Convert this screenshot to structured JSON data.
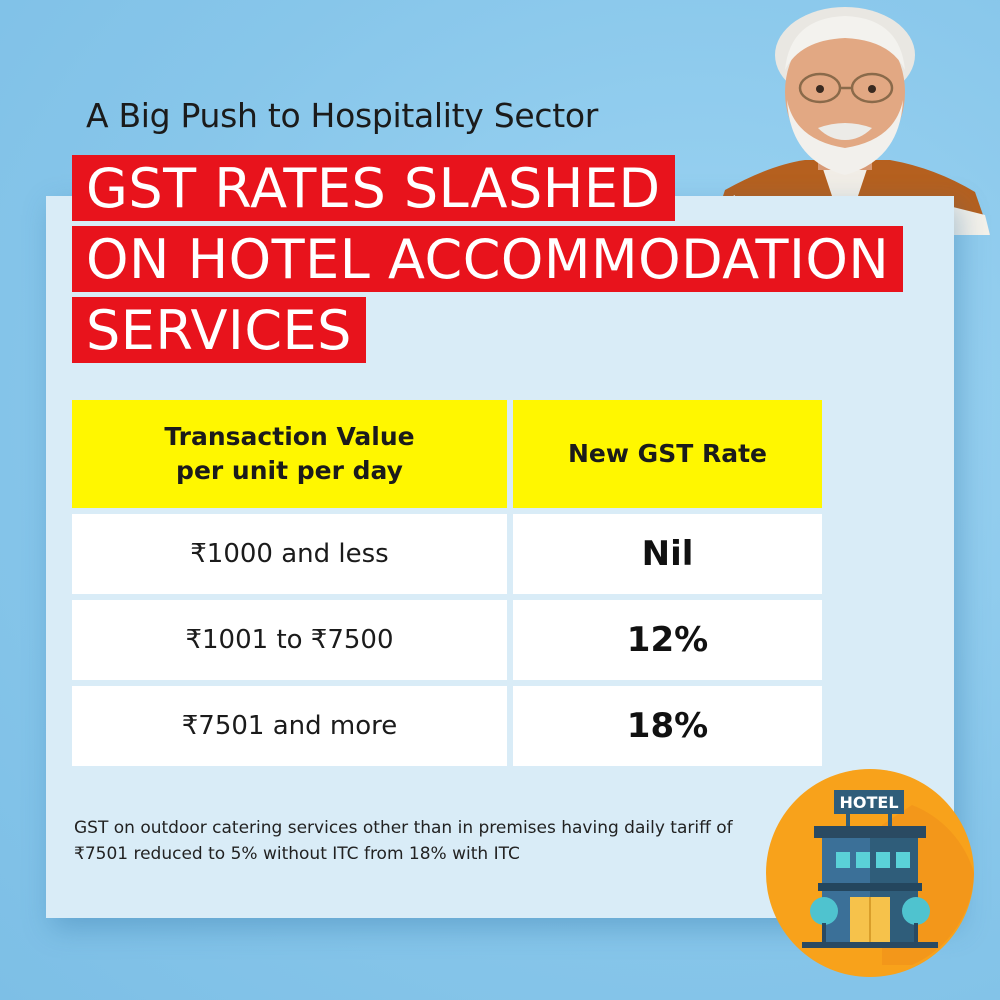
{
  "header": {
    "kicker": "A Big Push to Hospitality Sector",
    "headline_lines": [
      "GST RATES SLASHED",
      "ON HOTEL ACCOMMODATION",
      "SERVICES"
    ]
  },
  "table": {
    "columns": [
      "Transaction Value per unit per day",
      "New GST Rate"
    ],
    "rows": [
      {
        "value": "₹1000 and less",
        "rate": "Nil"
      },
      {
        "value": "₹1001 to ₹7500",
        "rate": "12%"
      },
      {
        "value": "₹7501 and more",
        "rate": "18%"
      }
    ]
  },
  "footnote": "GST on outdoor catering services other than in premises having daily tariff of ₹7501 reduced to 5% without ITC from 18% with ITC",
  "badge": {
    "sign_text": "HOTEL",
    "icon": "hotel-building-icon"
  },
  "colors": {
    "background": "#8ecbee",
    "card": "#d9ecf7",
    "headline_bg": "#e8131c",
    "table_header_bg": "#fff700",
    "badge_circle": "#f8a21b"
  }
}
